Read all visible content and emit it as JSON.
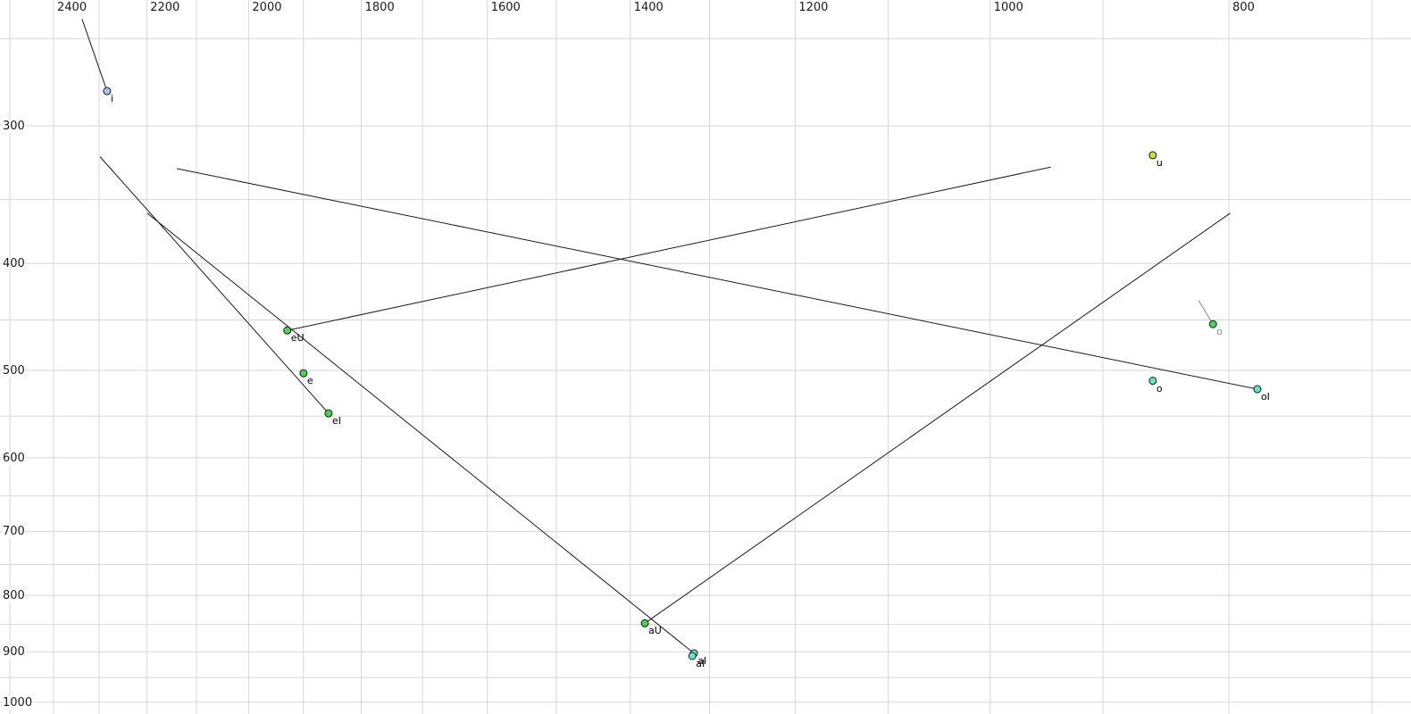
{
  "chart_data": {
    "type": "scatter",
    "title": "",
    "description": "Vowel formant plot: F2 (Hz, reversed, log scale, top axis) vs F1 (Hz, log scale, left axis) with diphthong glide trajectories",
    "background": "#ffffff",
    "grid": true,
    "grid_color": "#d7d7d7",
    "line_color": "#1a1a1a",
    "point_stroke": "#1c1c1c",
    "x_axis": {
      "position": "top",
      "scale": "log",
      "reversed": true,
      "unit": "Hz",
      "tick_labels": [
        "2400",
        "2200",
        "2000",
        "1800",
        "1600",
        "1400",
        "1200",
        "1000",
        "800"
      ],
      "tick_values": [
        2400,
        2200,
        2000,
        1800,
        1600,
        1400,
        1200,
        1000,
        800
      ],
      "gridline_values": [
        2500,
        2400,
        2300,
        2200,
        2100,
        2000,
        1900,
        1800,
        1700,
        1600,
        1500,
        1400,
        1300,
        1200,
        1100,
        1000,
        900,
        800,
        700
      ]
    },
    "y_axis": {
      "position": "left",
      "scale": "log",
      "unit": "Hz",
      "tick_labels": [
        "300",
        "400",
        "500",
        "600",
        "700",
        "800",
        "900",
        "1000"
      ],
      "tick_values": [
        300,
        400,
        500,
        600,
        700,
        800,
        900,
        1000
      ],
      "gridline_values": [
        250,
        300,
        350,
        400,
        450,
        500,
        550,
        600,
        650,
        700,
        750,
        800,
        850,
        900,
        950,
        1000
      ]
    },
    "points": [
      {
        "label": "i",
        "f2": 2283,
        "f1": 279,
        "fill": "#a8c8ee",
        "label_color": "#000000"
      },
      {
        "label": "u",
        "f2": 859,
        "f1": 319,
        "fill": "#c9e320",
        "label_color": "#000000"
      },
      {
        "label": "eU",
        "f2": 1929,
        "f1": 460,
        "fill": "#44d74c",
        "label_color": "#000000"
      },
      {
        "label": "e",
        "f2": 1900,
        "f1": 503,
        "fill": "#44d74c",
        "label_color": "#000000"
      },
      {
        "label": "eI",
        "f2": 1856,
        "f1": 547,
        "fill": "#44d74c",
        "label_color": "#000000"
      },
      {
        "label": "aU",
        "f2": 1381,
        "f1": 848,
        "fill": "#44d74c",
        "label_color": "#000000"
      },
      {
        "label": "aI",
        "f2": 1319,
        "f1": 903,
        "fill": "#60e6c7",
        "label_color": "#000000"
      },
      {
        "label": "aI",
        "f2": 1321,
        "f1": 908,
        "fill": "#60e6c7",
        "label_color": "#000000"
      },
      {
        "label": "o",
        "f2": 812,
        "f1": 454,
        "fill": "#44d74c",
        "label_color": "#8a8a8a"
      },
      {
        "label": "o",
        "f2": 859,
        "f1": 511,
        "fill": "#60e6c7",
        "label_color": "#000000"
      },
      {
        "label": "oI",
        "f2": 779,
        "f1": 520,
        "fill": "#60e6c7",
        "label_color": "#000000"
      }
    ],
    "trajectories": [
      {
        "name": "i-glide",
        "from": {
          "f2": 2337,
          "f1": 240
        },
        "to": {
          "f2": 2283,
          "f1": 279
        },
        "color": "#1a1a1a"
      },
      {
        "name": "eI-glide",
        "from": {
          "f2": 2298,
          "f1": 320
        },
        "to": {
          "f2": 1856,
          "f1": 547
        },
        "color": "#1a1a1a"
      },
      {
        "name": "aI-glide",
        "from": {
          "f2": 2199,
          "f1": 360
        },
        "to": {
          "f2": 1319,
          "f1": 903
        },
        "color": "#1a1a1a"
      },
      {
        "name": "eU-glide",
        "from": {
          "f2": 1929,
          "f1": 460
        },
        "to": {
          "f2": 945,
          "f1": 327
        },
        "color": "#1a1a1a"
      },
      {
        "name": "aU-glide",
        "from": {
          "f2": 1381,
          "f1": 848
        },
        "to": {
          "f2": 799,
          "f1": 360
        },
        "color": "#1a1a1a"
      },
      {
        "name": "oI-glide",
        "from": {
          "f2": 2139,
          "f1": 328
        },
        "to": {
          "f2": 779,
          "f1": 520
        },
        "color": "#1a1a1a"
      },
      {
        "name": "o-glide",
        "from": {
          "f2": 823,
          "f1": 432
        },
        "to": {
          "f2": 812,
          "f1": 454
        },
        "color": "#8a8a8a"
      }
    ]
  }
}
